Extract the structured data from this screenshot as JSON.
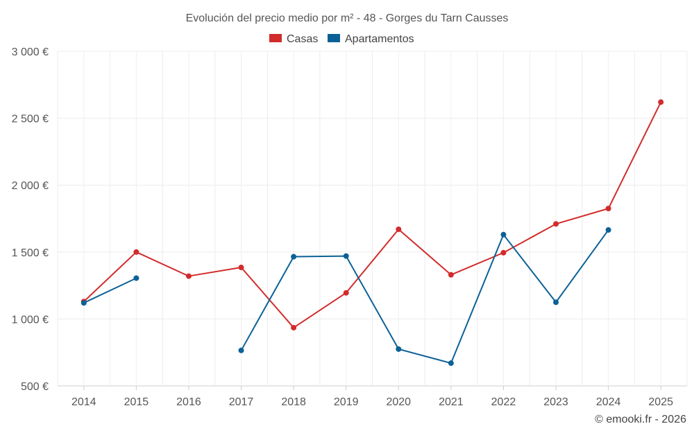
{
  "chart_data": {
    "type": "line",
    "title": "Evolución del precio medio por m² - 48 - Gorges du Tarn Causses",
    "categories": [
      "2014",
      "2015",
      "2016",
      "2017",
      "2018",
      "2019",
      "2020",
      "2021",
      "2022",
      "2023",
      "2024",
      "2025"
    ],
    "ylim": [
      500,
      3000
    ],
    "yticks": [
      500,
      1000,
      1500,
      2000,
      2500,
      3000
    ],
    "ytick_labels": [
      "500 €",
      "1 000 €",
      "1 500 €",
      "2 000 €",
      "2 500 €",
      "3 000 €"
    ],
    "grid": true,
    "legend_position": "top-center",
    "series": [
      {
        "name": "Casas",
        "color": "#d22b2b",
        "values": [
          1130,
          1500,
          1320,
          1385,
          935,
          1195,
          1670,
          1330,
          1495,
          1710,
          1825,
          2620
        ]
      },
      {
        "name": "Apartamentos",
        "color": "#0b6196",
        "values": [
          1120,
          1305,
          null,
          765,
          1465,
          1470,
          775,
          670,
          1630,
          1125,
          1665,
          null
        ]
      }
    ]
  },
  "footer": {
    "credit": "© emooki.fr - 2026"
  }
}
